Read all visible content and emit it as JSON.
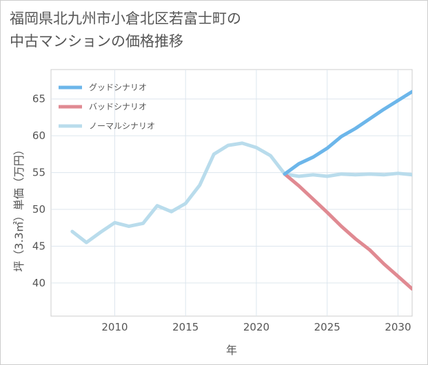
{
  "title_line1": "福岡県北九州市小倉北区若富士町の",
  "title_line2": "中古マンションの価格推移",
  "chart_data": {
    "type": "line",
    "title": "福岡県北九州市小倉北区若富士町の中古マンションの価格推移",
    "xlabel": "年",
    "ylabel": "坪（3.3㎡）単価（万円）",
    "xlim": [
      2005.5,
      2031
    ],
    "ylim": [
      35.5,
      69
    ],
    "xticks": [
      2010,
      2015,
      2020,
      2025,
      2030
    ],
    "yticks": [
      40,
      45,
      50,
      55,
      60,
      65
    ],
    "grid": true,
    "legend_position": "top-left",
    "series": [
      {
        "name": "グッドシナリオ",
        "color": "#6cb6ea",
        "x": [
          2022,
          2023,
          2024,
          2025,
          2026,
          2027,
          2028,
          2029,
          2030,
          2031
        ],
        "values": [
          54.8,
          56.2,
          57.1,
          58.3,
          59.9,
          61.0,
          62.3,
          63.6,
          64.8,
          66.0
        ]
      },
      {
        "name": "バッドシナリオ",
        "color": "#e08a92",
        "x": [
          2022,
          2023,
          2024,
          2025,
          2026,
          2027,
          2028,
          2029,
          2030,
          2031
        ],
        "values": [
          54.8,
          53.2,
          51.4,
          49.6,
          47.7,
          46.0,
          44.5,
          42.6,
          40.9,
          39.2
        ]
      },
      {
        "name": "ノーマルシナリオ",
        "color": "#b9dcec",
        "x": [
          2007,
          2008,
          2009,
          2010,
          2011,
          2012,
          2013,
          2014,
          2015,
          2016,
          2017,
          2018,
          2019,
          2020,
          2021,
          2022,
          2023,
          2024,
          2025,
          2026,
          2027,
          2028,
          2029,
          2030,
          2031
        ],
        "values": [
          47.0,
          45.5,
          46.9,
          48.2,
          47.7,
          48.1,
          50.5,
          49.7,
          50.8,
          53.3,
          57.5,
          58.7,
          59.0,
          58.4,
          57.3,
          54.8,
          54.5,
          54.7,
          54.5,
          54.8,
          54.7,
          54.8,
          54.7,
          54.9,
          54.7
        ]
      }
    ]
  }
}
